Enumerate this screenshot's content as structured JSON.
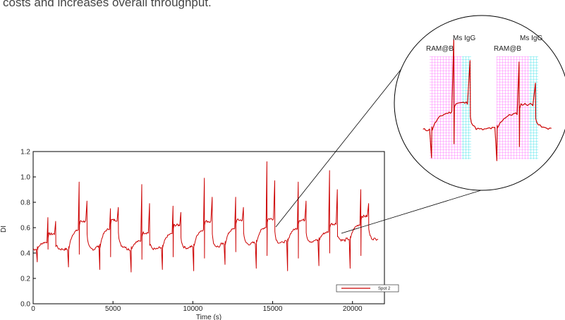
{
  "caption": "costs and increases overall throughput.",
  "chart_data": {
    "type": "line",
    "xlabel": "Time (s)",
    "ylabel": "DI",
    "xlim": [
      0,
      22000
    ],
    "ylim": [
      0,
      1.2
    ],
    "x_ticks": [
      0,
      5000,
      10000,
      15000,
      20000
    ],
    "y_ticks": [
      0.0,
      0.2,
      0.4,
      0.6,
      0.8,
      1.0,
      1.2
    ],
    "legend": {
      "position": "bottom-right",
      "entries": [
        "Spot 2"
      ]
    },
    "series": [
      {
        "name": "Spot 2",
        "color": "#cc0000",
        "cycle_period": 1960,
        "cycles": [
          {
            "start": 0,
            "baseline": 0.43,
            "association": 0.55,
            "spike_high": 0.68,
            "spike_low": 0.33
          },
          {
            "start": 1960,
            "baseline": 0.43,
            "association": 0.65,
            "spike_high": 0.96,
            "spike_low": 0.29
          },
          {
            "start": 3920,
            "baseline": 0.45,
            "association": 0.66,
            "spike_high": 0.75,
            "spike_low": 0.27
          },
          {
            "start": 5880,
            "baseline": 0.43,
            "association": 0.56,
            "spike_high": 0.94,
            "spike_low": 0.25
          },
          {
            "start": 7840,
            "baseline": 0.44,
            "association": 0.62,
            "spike_high": 0.77,
            "spike_low": 0.27
          },
          {
            "start": 9800,
            "baseline": 0.45,
            "association": 0.65,
            "spike_high": 0.99,
            "spike_low": 0.26
          },
          {
            "start": 11760,
            "baseline": 0.47,
            "association": 0.66,
            "spike_high": 0.84,
            "spike_low": 0.31
          },
          {
            "start": 13720,
            "baseline": 0.48,
            "association": 0.67,
            "spike_high": 1.12,
            "spike_low": 0.28
          },
          {
            "start": 15680,
            "baseline": 0.49,
            "association": 0.66,
            "spike_high": 0.96,
            "spike_low": 0.26
          },
          {
            "start": 17640,
            "baseline": 0.5,
            "association": 0.63,
            "spike_high": 1.05,
            "spike_low": 0.3
          },
          {
            "start": 19600,
            "baseline": 0.51,
            "association": 0.69,
            "spike_high": 0.9,
            "spike_low": 0.28
          }
        ]
      }
    ],
    "inset": {
      "description": "magnified view of two binding cycles",
      "annotations": [
        "RAM@B",
        "Ms IgG",
        "RAM@B",
        "Ms IgG"
      ],
      "highlight_colors": {
        "ram_at_b": "#ff66ff",
        "ms_igg": "#33e0e8"
      }
    }
  }
}
